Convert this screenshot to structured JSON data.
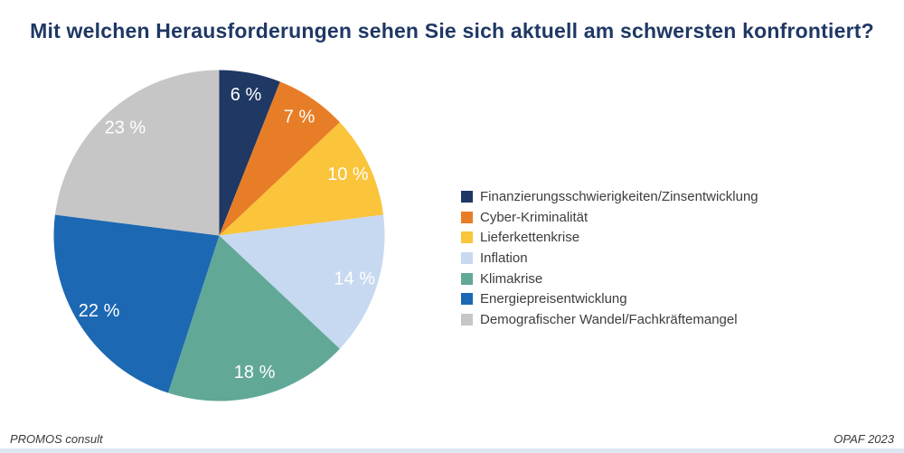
{
  "title": "Mit welchen Herausforderungen sehen Sie sich aktuell am schwersten konfrontiert?",
  "title_color": "#1F3864",
  "chart_data": {
    "type": "pie",
    "title": "Mit welchen Herausforderungen sehen Sie sich aktuell am schwersten konfrontiert?",
    "labels": [
      "Finanzierungsschwierigkeiten/Zinsentwicklung",
      "Cyber-Kriminalität",
      "Lieferkettenkrise",
      "Inflation",
      "Klimakrise",
      "Energiepreisentwicklung",
      "Demografischer Wandel/Fachkräftemangel"
    ],
    "values": [
      6,
      7,
      10,
      14,
      18,
      22,
      23
    ],
    "colors": [
      "#1F3864",
      "#E87D27",
      "#FAC43B",
      "#C7D9F0",
      "#62A897",
      "#1C68B2",
      "#C6C6C6"
    ],
    "slice_label_suffix": " %",
    "slice_label_color": "#FFFFFF",
    "start_angle_deg": 0,
    "direction": "clockwise",
    "legend_position": "right"
  },
  "footer": {
    "left": "PROMOS consult",
    "right": "OPAF 2023"
  },
  "accent_bar_color": "#DEE8F4"
}
